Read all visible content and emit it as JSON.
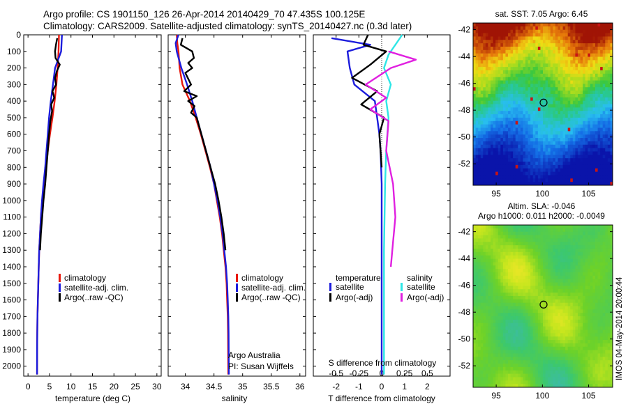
{
  "header": {
    "line1": "Argo profile: CS 1901150_126 26-Apr-2014 20140429_70 47.435S 100.125E",
    "line2": "Climatology: CARS2009. Satellite-adjusted climatology: synTS_20140427.nc (0.3d later)"
  },
  "colors": {
    "climatology": "#e8180c",
    "satellite": "#1c1cdc",
    "argo": "#000000",
    "satellite_s": "#2ee6e6",
    "argo_s": "#e020e0"
  },
  "legend_profiles": [
    "climatology",
    "satellite-adj. clim.",
    "Argo(..raw -QC)"
  ],
  "diff_legend": {
    "temperature_title": "temperature",
    "salinity_title": "salinity",
    "satellite": "satellite",
    "argo": "Argo(-adj)"
  },
  "credit": {
    "line1": "Argo Australia",
    "line2": "PI: Susan Wijffels"
  },
  "map_sst": {
    "title": "sat. SST: 7.05 Argo: 6.45",
    "lat_ticks": [
      "-42",
      "-44",
      "-46",
      "-48",
      "-50",
      "-52"
    ],
    "lon_ticks": [
      "95",
      "100",
      "105"
    ],
    "argo_position": {
      "lon": 100.125,
      "lat": -47.435
    }
  },
  "map_sla": {
    "title1": "Altim. SLA: -0.046",
    "title2": "Argo h1000: 0.011 h2000: -0.0049",
    "lat_ticks": [
      "-42",
      "-44",
      "-46",
      "-48",
      "-50",
      "-52"
    ],
    "lon_ticks": [
      "95",
      "100",
      "105"
    ],
    "argo_position": {
      "lon": 100.125,
      "lat": -47.435
    }
  },
  "timestamp": "IMOS 04-May-2014 20:00:44",
  "chart_data": [
    {
      "type": "line",
      "xlabel": "temperature (deg C)",
      "ylabel": "",
      "xlim": [
        -1,
        31
      ],
      "ylim": [
        2060,
        0
      ],
      "xticks": [
        "0",
        "5",
        "10",
        "15",
        "20",
        "25",
        "30"
      ],
      "yticks": [
        "0",
        "100",
        "200",
        "300",
        "400",
        "500",
        "600",
        "700",
        "800",
        "900",
        "1000",
        "1100",
        "1200",
        "1300",
        "1400",
        "1500",
        "1600",
        "1700",
        "1800",
        "1900",
        "2000"
      ],
      "series": [
        {
          "name": "climatology",
          "x": [
            7.2,
            7.1,
            6.9,
            6.6,
            6.2,
            5.7,
            5.1,
            4.6,
            4.2,
            3.7,
            3.3,
            3.0,
            2.8,
            2.6,
            2.5,
            2.4,
            2.3,
            2.2,
            2.15,
            2.12,
            2.1
          ],
          "y": [
            0,
            100,
            200,
            300,
            400,
            500,
            600,
            700,
            800,
            900,
            1000,
            1100,
            1200,
            1300,
            1400,
            1500,
            1600,
            1700,
            1800,
            1900,
            2050
          ]
        },
        {
          "name": "satellite-adj. clim.",
          "x": [
            7.9,
            7.7,
            6.3,
            5.8,
            5.3,
            4.9,
            4.6,
            4.3,
            4.0,
            3.6,
            3.25,
            3.0,
            2.8,
            2.6,
            2.5,
            2.4,
            2.3,
            2.2,
            2.15,
            2.12,
            2.1
          ],
          "y": [
            0,
            100,
            200,
            300,
            400,
            500,
            600,
            700,
            800,
            900,
            1000,
            1100,
            1200,
            1300,
            1400,
            1500,
            1600,
            1700,
            1800,
            1900,
            2050
          ]
        },
        {
          "name": "Argo(..raw -QC)",
          "x": [
            6.8,
            6.5,
            6.3,
            6.4,
            7.4,
            6.7,
            6.3,
            6.5,
            5.7,
            6.1,
            5.4,
            5.6,
            5.2,
            4.9,
            4.6,
            4.3,
            4.0,
            3.6,
            3.3,
            3.0,
            2.8
          ],
          "y": [
            20,
            60,
            100,
            140,
            180,
            220,
            260,
            300,
            340,
            380,
            420,
            460,
            520,
            600,
            700,
            800,
            900,
            1000,
            1100,
            1200,
            1300
          ]
        }
      ]
    },
    {
      "type": "line",
      "xlabel": "salinity",
      "ylabel": "",
      "xlim": [
        33.7,
        36.1
      ],
      "ylim": [
        2060,
        0
      ],
      "xticks": [
        "34",
        "34.5",
        "35",
        "35.5",
        "36"
      ],
      "series": [
        {
          "name": "climatology",
          "x": [
            33.85,
            33.86,
            33.88,
            33.9,
            33.95,
            34.08,
            34.18,
            34.27,
            34.35,
            34.43,
            34.5,
            34.55,
            34.6,
            34.64,
            34.67,
            34.7,
            34.72,
            34.73,
            34.74,
            34.745,
            34.75
          ],
          "y": [
            0,
            50,
            100,
            200,
            300,
            400,
            500,
            600,
            700,
            800,
            900,
            1000,
            1100,
            1200,
            1300,
            1400,
            1500,
            1600,
            1700,
            1800,
            2050
          ]
        },
        {
          "name": "satellite-adj. clim.",
          "x": [
            33.88,
            33.83,
            33.85,
            33.93,
            34.03,
            34.12,
            34.2,
            34.28,
            34.36,
            34.44,
            34.5,
            34.56,
            34.61,
            34.65,
            34.68,
            34.71,
            34.73,
            34.74,
            34.75,
            34.755,
            34.76
          ],
          "y": [
            0,
            50,
            100,
            200,
            300,
            400,
            500,
            600,
            700,
            800,
            900,
            1000,
            1100,
            1200,
            1300,
            1400,
            1500,
            1600,
            1700,
            1800,
            2050
          ]
        },
        {
          "name": "Argo(..raw -QC)",
          "x": [
            33.95,
            33.92,
            34.12,
            34.15,
            34.05,
            34.12,
            34.0,
            34.1,
            33.98,
            34.2,
            34.05,
            34.16,
            34.1,
            34.2,
            34.28,
            34.36,
            34.44,
            34.52,
            34.58,
            34.63,
            34.67,
            34.7
          ],
          "y": [
            20,
            60,
            100,
            140,
            170,
            200,
            230,
            300,
            340,
            370,
            400,
            430,
            470,
            500,
            600,
            700,
            800,
            900,
            1000,
            1100,
            1200,
            1300
          ]
        }
      ]
    },
    {
      "type": "line",
      "xlabel": "T difference from climatology",
      "title": "S difference from climatology",
      "xlim": [
        -3,
        3
      ],
      "ylim": [
        2060,
        0
      ],
      "xticks": [
        "-2",
        "-1",
        "0",
        "1",
        "2"
      ],
      "top_xticks": [
        "-0.5",
        "-0.25",
        "0",
        "0.25",
        "0.5"
      ],
      "series": [
        {
          "name": "temperature satellite",
          "x": [
            -2.2,
            -0.5,
            -1.5,
            -1.4,
            -1.2,
            -0.3,
            -0.2,
            -0.1,
            -0.05,
            0,
            0,
            0
          ],
          "y": [
            20,
            60,
            100,
            200,
            300,
            400,
            500,
            600,
            700,
            900,
            1300,
            2050
          ]
        },
        {
          "name": "temperature Argo(-adj)",
          "x": [
            -0.6,
            -0.8,
            0.2,
            -0.5,
            -1.3,
            -0.2,
            -0.9,
            0.1,
            -0.1,
            0
          ],
          "y": [
            0,
            60,
            100,
            180,
            260,
            340,
            420,
            500,
            600,
            800
          ]
        },
        {
          "name": "salinity satellite",
          "x": [
            0.9,
            0.6,
            0.3,
            0.1,
            0.4,
            0.2,
            0.3,
            0.2,
            0.15,
            0.1,
            0.1
          ],
          "y": [
            0,
            60,
            120,
            200,
            300,
            400,
            500,
            700,
            900,
            1300,
            2050
          ]
        },
        {
          "name": "salinity Argo(-adj)",
          "x": [
            0.3,
            1.5,
            0.4,
            -0.7,
            0.2,
            -0.5,
            0.3,
            0.2,
            0.5,
            0.6,
            0.5,
            0.4
          ],
          "y": [
            100,
            150,
            200,
            300,
            380,
            450,
            520,
            700,
            900,
            1100,
            1250,
            1400
          ]
        }
      ]
    }
  ]
}
